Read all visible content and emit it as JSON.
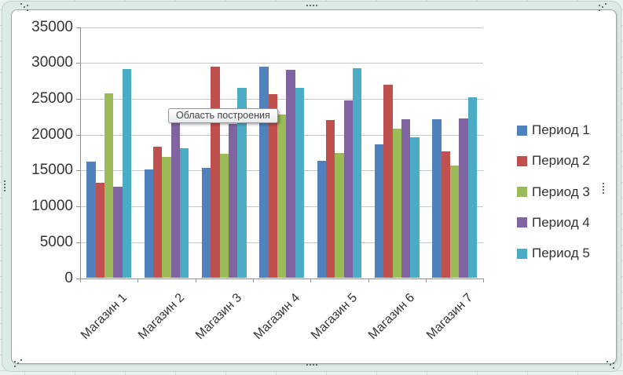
{
  "tooltip": {
    "text": "Область построения"
  },
  "chart_data": {
    "type": "bar",
    "title": "",
    "xlabel": "",
    "ylabel": "",
    "categories": [
      "Магазин 1",
      "Магазин 2",
      "Магазин 3",
      "Магазин 4",
      "Магазин 5",
      "Магазин 6",
      "Магазин 7"
    ],
    "series": [
      {
        "name": "Период 1",
        "color": "#4F81BD",
        "values": [
          16200,
          15100,
          15400,
          29500,
          16400,
          18700,
          22100
        ]
      },
      {
        "name": "Период 2",
        "color": "#C0504D",
        "values": [
          13300,
          18300,
          29500,
          25700,
          22000,
          27000,
          17700
        ]
      },
      {
        "name": "Период 3",
        "color": "#9BBB59",
        "values": [
          25800,
          16900,
          17300,
          22800,
          17400,
          20800,
          15700
        ]
      },
      {
        "name": "Период 4",
        "color": "#8064A2",
        "values": [
          12700,
          21800,
          21500,
          29000,
          24800,
          22100,
          22300
        ]
      },
      {
        "name": "Период 5",
        "color": "#4BACC6",
        "values": [
          29200,
          18100,
          26500,
          26500,
          29300,
          19600,
          25200
        ]
      }
    ],
    "ylim": [
      0,
      35000
    ],
    "ytick_step": 5000,
    "yticks": [
      0,
      5000,
      10000,
      15000,
      20000,
      25000,
      30000,
      35000
    ],
    "grid": true,
    "legend_position": "right",
    "gap_width_percent": 150,
    "colors": {
      "gridline": "#C6C6C6",
      "axis": "#8E8E8E",
      "text": "#353535"
    }
  }
}
